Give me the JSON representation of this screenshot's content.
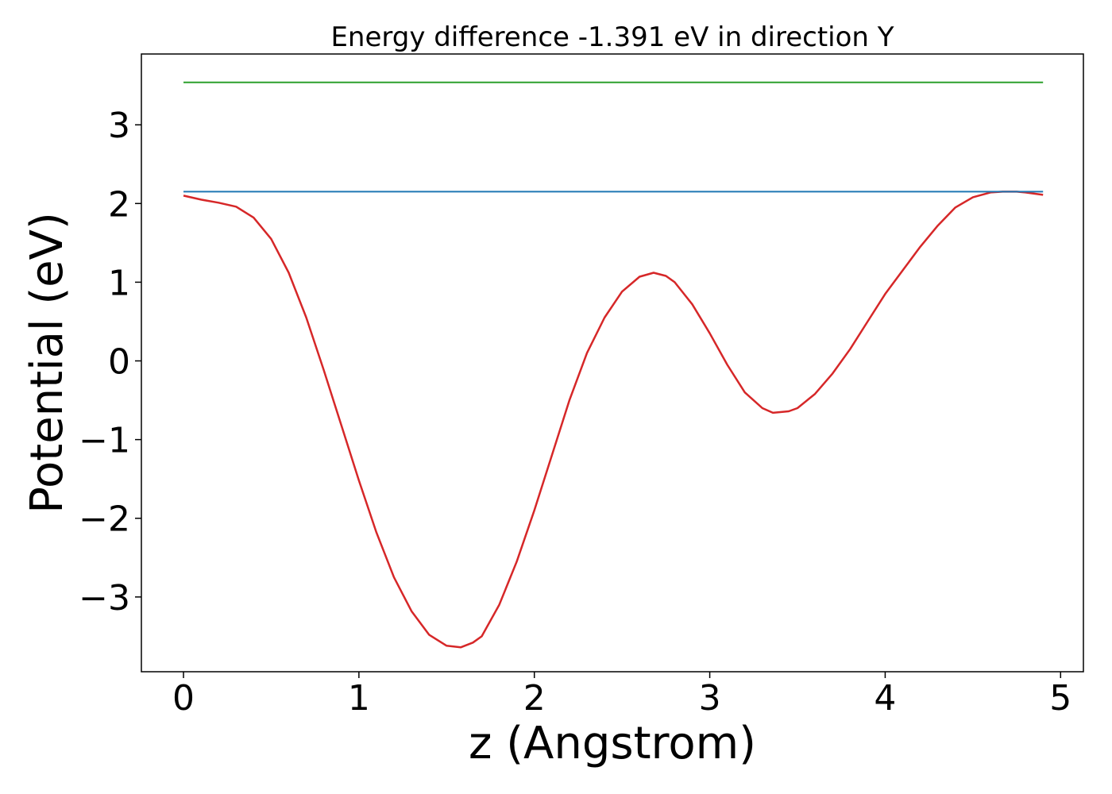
{
  "chart_data": {
    "type": "line",
    "title": "Energy difference -1.391 eV in direction Y",
    "xlabel": "z (Angstrom)",
    "ylabel": "Potential (eV)",
    "xlim": [
      -0.24,
      5.13
    ],
    "ylim": [
      -3.95,
      3.9
    ],
    "grid": false,
    "xticks": [
      0,
      1,
      2,
      3,
      4,
      5
    ],
    "xtick_labels": [
      "0",
      "1",
      "2",
      "3",
      "4",
      "5"
    ],
    "yticks": [
      -3,
      -2,
      -1,
      0,
      1,
      2,
      3
    ],
    "ytick_labels": [
      "−3",
      "−2",
      "−1",
      "0",
      "1",
      "2",
      "3"
    ],
    "series": [
      {
        "color": "#d62728",
        "x": [
          0.0,
          0.1,
          0.2,
          0.3,
          0.4,
          0.5,
          0.6,
          0.7,
          0.8,
          0.9,
          1.0,
          1.1,
          1.2,
          1.3,
          1.4,
          1.5,
          1.58,
          1.65,
          1.7,
          1.8,
          1.9,
          2.0,
          2.1,
          2.2,
          2.3,
          2.4,
          2.5,
          2.6,
          2.68,
          2.75,
          2.8,
          2.9,
          3.0,
          3.1,
          3.2,
          3.3,
          3.36,
          3.45,
          3.5,
          3.6,
          3.7,
          3.8,
          3.9,
          4.0,
          4.1,
          4.2,
          4.3,
          4.4,
          4.5,
          4.6,
          4.67,
          4.75,
          4.8,
          4.9
        ],
        "y": [
          2.1,
          2.05,
          2.01,
          1.96,
          1.82,
          1.55,
          1.12,
          0.55,
          -0.12,
          -0.82,
          -1.52,
          -2.18,
          -2.75,
          -3.18,
          -3.48,
          -3.62,
          -3.64,
          -3.58,
          -3.5,
          -3.1,
          -2.55,
          -1.9,
          -1.2,
          -0.5,
          0.1,
          0.55,
          0.88,
          1.07,
          1.12,
          1.08,
          1.0,
          0.72,
          0.35,
          -0.05,
          -0.4,
          -0.6,
          -0.66,
          -0.64,
          -0.6,
          -0.42,
          -0.16,
          0.15,
          0.5,
          0.85,
          1.15,
          1.45,
          1.72,
          1.95,
          2.08,
          2.14,
          2.15,
          2.15,
          2.14,
          2.11
        ]
      },
      {
        "color": "#1f77b4",
        "x": [
          0.0,
          4.9
        ],
        "y": [
          2.15,
          2.15
        ]
      },
      {
        "color": "#2ca02c",
        "x": [
          0.0,
          4.9
        ],
        "y": [
          3.54,
          3.54
        ]
      }
    ]
  }
}
